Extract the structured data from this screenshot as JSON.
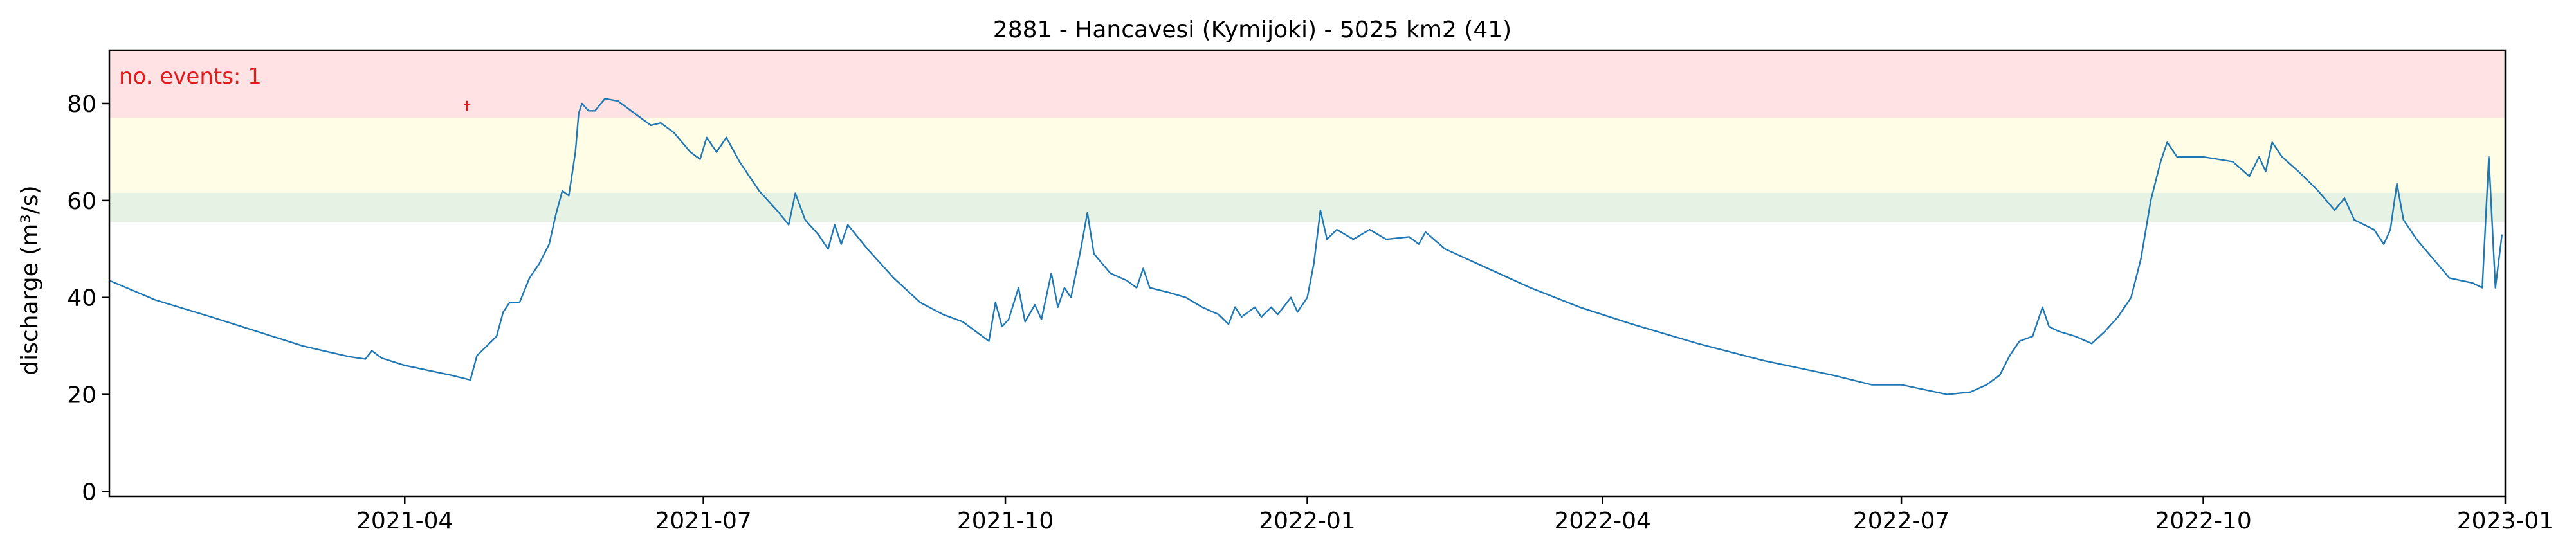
{
  "chart_data": {
    "type": "line",
    "title": "2881 - Hancavesi (Kymijoki) - 5025 km2 (41)",
    "xlabel": "",
    "ylabel": "discharge (m³/s)",
    "xlim": [
      "2021-01-01",
      "2023-01-01"
    ],
    "ylim": [
      -1,
      91
    ],
    "x_ticks": [
      "2021-04-01",
      "2021-07-01",
      "2021-10-01",
      "2022-01-01",
      "2022-04-01",
      "2022-07-01",
      "2022-10-01",
      "2023-01-01"
    ],
    "x_tick_labels": [
      "2021-04",
      "2021-07",
      "2021-10",
      "2022-01",
      "2022-04",
      "2022-07",
      "2022-10",
      "2023-01"
    ],
    "y_ticks": [
      0,
      20,
      40,
      60,
      80
    ],
    "grid": false,
    "bands": [
      {
        "name": "green",
        "from": 55.6,
        "to": 61.6,
        "color": "#e6f2e4"
      },
      {
        "name": "yellow",
        "from": 61.6,
        "to": 77.0,
        "color": "#fffde6"
      },
      {
        "name": "red",
        "from": 77.0,
        "to": 91,
        "color": "#ffe2e4"
      }
    ],
    "annotation": {
      "text": "no. events: 1",
      "color": "#e31a1c",
      "position": "top-left"
    },
    "events": [
      {
        "x": "2021-04-20",
        "y": 79.5,
        "color": "#e31a1c"
      }
    ],
    "series": [
      {
        "color": "#1f77b4",
        "points": [
          [
            "2021-01-01",
            43.5
          ],
          [
            "2021-01-15",
            39.5
          ],
          [
            "2021-02-01",
            36.0
          ],
          [
            "2021-02-15",
            33.0
          ],
          [
            "2021-03-01",
            30.0
          ],
          [
            "2021-03-15",
            27.8
          ],
          [
            "2021-03-20",
            27.3
          ],
          [
            "2021-03-22",
            29.0
          ],
          [
            "2021-03-25",
            27.5
          ],
          [
            "2021-04-01",
            26.0
          ],
          [
            "2021-04-08",
            25.0
          ],
          [
            "2021-04-15",
            24.0
          ],
          [
            "2021-04-21",
            23.0
          ],
          [
            "2021-04-23",
            28.0
          ],
          [
            "2021-04-26",
            30.0
          ],
          [
            "2021-04-29",
            32.0
          ],
          [
            "2021-05-01",
            37.0
          ],
          [
            "2021-05-03",
            39.0
          ],
          [
            "2021-05-06",
            39.0
          ],
          [
            "2021-05-09",
            44.0
          ],
          [
            "2021-05-12",
            47.0
          ],
          [
            "2021-05-15",
            51.0
          ],
          [
            "2021-05-17",
            57.0
          ],
          [
            "2021-05-19",
            62.0
          ],
          [
            "2021-05-21",
            61.0
          ],
          [
            "2021-05-23",
            70.0
          ],
          [
            "2021-05-24",
            78.0
          ],
          [
            "2021-05-25",
            80.0
          ],
          [
            "2021-05-27",
            78.5
          ],
          [
            "2021-05-29",
            78.5
          ],
          [
            "2021-06-01",
            81.0
          ],
          [
            "2021-06-05",
            80.5
          ],
          [
            "2021-06-10",
            78.0
          ],
          [
            "2021-06-15",
            75.5
          ],
          [
            "2021-06-18",
            76.0
          ],
          [
            "2021-06-22",
            74.0
          ],
          [
            "2021-06-27",
            70.0
          ],
          [
            "2021-06-30",
            68.5
          ],
          [
            "2021-07-02",
            73.0
          ],
          [
            "2021-07-05",
            70.0
          ],
          [
            "2021-07-08",
            73.0
          ],
          [
            "2021-07-12",
            68.0
          ],
          [
            "2021-07-18",
            62.0
          ],
          [
            "2021-07-24",
            57.5
          ],
          [
            "2021-07-27",
            55.0
          ],
          [
            "2021-07-29",
            61.5
          ],
          [
            "2021-08-01",
            56.0
          ],
          [
            "2021-08-05",
            53.0
          ],
          [
            "2021-08-08",
            50.0
          ],
          [
            "2021-08-10",
            55.0
          ],
          [
            "2021-08-12",
            51.0
          ],
          [
            "2021-08-14",
            55.0
          ],
          [
            "2021-08-20",
            50.0
          ],
          [
            "2021-08-28",
            44.0
          ],
          [
            "2021-09-05",
            39.0
          ],
          [
            "2021-09-12",
            36.5
          ],
          [
            "2021-09-18",
            35.0
          ],
          [
            "2021-09-22",
            33.0
          ],
          [
            "2021-09-26",
            31.0
          ],
          [
            "2021-09-28",
            39.0
          ],
          [
            "2021-09-30",
            34.0
          ],
          [
            "2021-10-02",
            35.5
          ],
          [
            "2021-10-05",
            42.0
          ],
          [
            "2021-10-07",
            35.0
          ],
          [
            "2021-10-10",
            38.5
          ],
          [
            "2021-10-12",
            35.5
          ],
          [
            "2021-10-15",
            45.0
          ],
          [
            "2021-10-17",
            38.0
          ],
          [
            "2021-10-19",
            42.0
          ],
          [
            "2021-10-21",
            40.0
          ],
          [
            "2021-10-24",
            50.0
          ],
          [
            "2021-10-26",
            57.5
          ],
          [
            "2021-10-28",
            49.0
          ],
          [
            "2021-11-02",
            45.0
          ],
          [
            "2021-11-07",
            43.5
          ],
          [
            "2021-11-10",
            42.0
          ],
          [
            "2021-11-12",
            46.0
          ],
          [
            "2021-11-14",
            42.0
          ],
          [
            "2021-11-20",
            41.0
          ],
          [
            "2021-11-25",
            40.0
          ],
          [
            "2021-11-30",
            38.0
          ],
          [
            "2021-12-05",
            36.5
          ],
          [
            "2021-12-08",
            34.5
          ],
          [
            "2021-12-10",
            38.0
          ],
          [
            "2021-12-12",
            36.0
          ],
          [
            "2021-12-16",
            38.0
          ],
          [
            "2021-12-18",
            36.0
          ],
          [
            "2021-12-21",
            38.0
          ],
          [
            "2021-12-23",
            36.5
          ],
          [
            "2021-12-27",
            40.0
          ],
          [
            "2021-12-29",
            37.0
          ],
          [
            "2022-01-01",
            40.0
          ],
          [
            "2022-01-03",
            47.0
          ],
          [
            "2022-01-05",
            58.0
          ],
          [
            "2022-01-07",
            52.0
          ],
          [
            "2022-01-10",
            54.0
          ],
          [
            "2022-01-15",
            52.0
          ],
          [
            "2022-01-20",
            54.0
          ],
          [
            "2022-01-25",
            52.0
          ],
          [
            "2022-02-01",
            52.5
          ],
          [
            "2022-02-04",
            51.0
          ],
          [
            "2022-02-06",
            53.5
          ],
          [
            "2022-02-12",
            50.0
          ],
          [
            "2022-02-25",
            46.0
          ],
          [
            "2022-03-10",
            42.0
          ],
          [
            "2022-03-25",
            38.0
          ],
          [
            "2022-04-10",
            34.5
          ],
          [
            "2022-04-30",
            30.5
          ],
          [
            "2022-05-20",
            27.0
          ],
          [
            "2022-06-10",
            24.0
          ],
          [
            "2022-06-22",
            22.0
          ],
          [
            "2022-07-01",
            22.0
          ],
          [
            "2022-07-08",
            21.0
          ],
          [
            "2022-07-15",
            20.0
          ],
          [
            "2022-07-22",
            20.5
          ],
          [
            "2022-07-27",
            22.0
          ],
          [
            "2022-07-31",
            24.0
          ],
          [
            "2022-08-03",
            28.0
          ],
          [
            "2022-08-06",
            31.0
          ],
          [
            "2022-08-10",
            32.0
          ],
          [
            "2022-08-13",
            38.0
          ],
          [
            "2022-08-15",
            34.0
          ],
          [
            "2022-08-18",
            33.0
          ],
          [
            "2022-08-23",
            32.0
          ],
          [
            "2022-08-28",
            30.5
          ],
          [
            "2022-09-01",
            33.0
          ],
          [
            "2022-09-05",
            36.0
          ],
          [
            "2022-09-09",
            40.0
          ],
          [
            "2022-09-12",
            48.0
          ],
          [
            "2022-09-15",
            60.0
          ],
          [
            "2022-09-18",
            68.0
          ],
          [
            "2022-09-20",
            72.0
          ],
          [
            "2022-09-23",
            69.0
          ],
          [
            "2022-10-01",
            69.0
          ],
          [
            "2022-10-10",
            68.0
          ],
          [
            "2022-10-15",
            65.0
          ],
          [
            "2022-10-18",
            69.0
          ],
          [
            "2022-10-20",
            66.0
          ],
          [
            "2022-10-22",
            72.0
          ],
          [
            "2022-10-25",
            69.0
          ],
          [
            "2022-10-30",
            66.0
          ],
          [
            "2022-11-05",
            62.0
          ],
          [
            "2022-11-10",
            58.0
          ],
          [
            "2022-11-13",
            60.5
          ],
          [
            "2022-11-16",
            56.0
          ],
          [
            "2022-11-22",
            54.0
          ],
          [
            "2022-11-25",
            51.0
          ],
          [
            "2022-11-27",
            54.0
          ],
          [
            "2022-11-29",
            63.5
          ],
          [
            "2022-12-01",
            56.0
          ],
          [
            "2022-12-05",
            52.0
          ],
          [
            "2022-12-10",
            48.0
          ],
          [
            "2022-12-15",
            44.0
          ],
          [
            "2022-12-22",
            43.0
          ],
          [
            "2022-12-25",
            42.0
          ],
          [
            "2022-12-27",
            69.0
          ],
          [
            "2022-12-29",
            42.0
          ],
          [
            "2022-12-31",
            53.0
          ]
        ]
      }
    ]
  }
}
